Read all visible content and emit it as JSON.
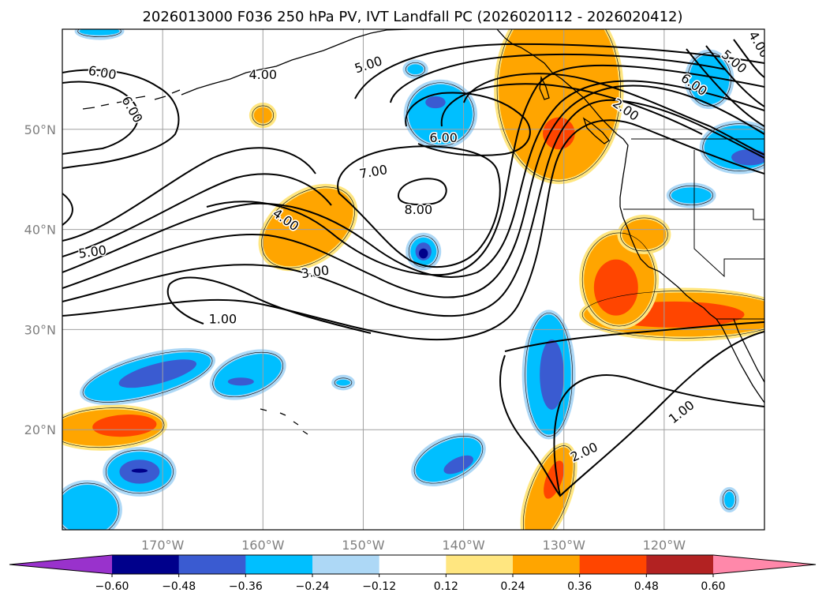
{
  "title": "2026013000 F036 250 hPa PV, IVT Landfall PC (2026020112 - 2026020412)",
  "map": {
    "projection": "equirectangular",
    "extent": {
      "lon_min": -180,
      "lon_max": -110,
      "lat_min": 10,
      "lat_max": 60
    },
    "gridlines": true,
    "lon_ticks": [
      {
        "value": -170,
        "label": "170°W"
      },
      {
        "value": -160,
        "label": "160°W"
      },
      {
        "value": -150,
        "label": "150°W"
      },
      {
        "value": -140,
        "label": "140°W"
      },
      {
        "value": -130,
        "label": "130°W"
      },
      {
        "value": -120,
        "label": "120°W"
      }
    ],
    "lat_ticks": [
      {
        "value": 50,
        "label": "50°N"
      },
      {
        "value": 40,
        "label": "40°N"
      },
      {
        "value": 30,
        "label": "30°N"
      },
      {
        "value": 20,
        "label": "20°N"
      }
    ]
  },
  "colorbar": {
    "extend": "both",
    "colors": [
      "#9932cc",
      "#00008b",
      "#3a5bd1",
      "#00bfff",
      "#add8f6",
      "#ffffff",
      "#ffe680",
      "#ffa500",
      "#ff4500",
      "#b22222",
      "#ff88aa"
    ],
    "tick_labels": [
      "−0.60",
      "−0.48",
      "−0.36",
      "−0.24",
      "−0.12",
      "0.12",
      "0.24",
      "0.36",
      "0.48",
      "0.60"
    ]
  },
  "contour_labels": [
    {
      "text": "6.00",
      "lon": -176,
      "lat": 55.7,
      "rot": 10
    },
    {
      "text": "6.00",
      "lon": -173,
      "lat": 52,
      "rot": 60
    },
    {
      "text": "4.00",
      "lon": -160,
      "lat": 55.5,
      "rot": 0
    },
    {
      "text": "5.00",
      "lon": -149.5,
      "lat": 56.5,
      "rot": -18
    },
    {
      "text": "7.00",
      "lon": -149,
      "lat": 45.8,
      "rot": -10
    },
    {
      "text": "6.00",
      "lon": -142,
      "lat": 49.2,
      "rot": 0
    },
    {
      "text": "8.00",
      "lon": -144.5,
      "lat": 42,
      "rot": 0
    },
    {
      "text": "4.00",
      "lon": -157.7,
      "lat": 41,
      "rot": 35
    },
    {
      "text": "3.00",
      "lon": -154.8,
      "lat": 35.8,
      "rot": -8
    },
    {
      "text": "5.00",
      "lon": -177,
      "lat": 37.8,
      "rot": -8
    },
    {
      "text": "1.00",
      "lon": -164,
      "lat": 31.1,
      "rot": 0
    },
    {
      "text": "2.00",
      "lon": -123.8,
      "lat": 52,
      "rot": 35
    },
    {
      "text": "6.00",
      "lon": -117,
      "lat": 54.5,
      "rot": 35
    },
    {
      "text": "5.00",
      "lon": -113,
      "lat": 56.8,
      "rot": 40
    },
    {
      "text": "4.00",
      "lon": -110.5,
      "lat": 58.5,
      "rot": 60
    },
    {
      "text": "2.00",
      "lon": -128,
      "lat": 17.8,
      "rot": -25
    },
    {
      "text": "1.00",
      "lon": -118.3,
      "lat": 21.8,
      "rot": -38
    }
  ],
  "pv_regions": [
    {
      "level": "0.24",
      "color": "#ffa500",
      "lon": -130.5,
      "lat": 54,
      "rx": 6,
      "ry": 9,
      "rot": 0
    },
    {
      "level": "0.36",
      "color": "#ff4500",
      "lon": -130.5,
      "lat": 49.6,
      "rx": 1.6,
      "ry": 1.6,
      "rot": 0
    },
    {
      "level": "0.24",
      "color": "#ffa500",
      "lon": -155.5,
      "lat": 40.2,
      "rx": 5,
      "ry": 3.2,
      "rot": -35
    },
    {
      "level": "0.24",
      "color": "#ffa500",
      "lon": -118,
      "lat": 31.5,
      "rx": 10,
      "ry": 2.2,
      "rot": 0
    },
    {
      "level": "0.36",
      "color": "#ff4500",
      "lon": -119,
      "lat": 31.5,
      "rx": 7,
      "ry": 1.3,
      "rot": 0
    },
    {
      "level": "0.24",
      "color": "#ffa500",
      "lon": -124.5,
      "lat": 35,
      "rx": 3.5,
      "ry": 4.5,
      "rot": 0
    },
    {
      "level": "0.36",
      "color": "#ff4500",
      "lon": -124.8,
      "lat": 34.2,
      "rx": 2.2,
      "ry": 2.8,
      "rot": 0
    },
    {
      "level": "0.24",
      "color": "#ffa500",
      "lon": -175.5,
      "lat": 20.2,
      "rx": 5.5,
      "ry": 1.8,
      "rot": -3
    },
    {
      "level": "0.36",
      "color": "#ff4500",
      "lon": -173.8,
      "lat": 20.4,
      "rx": 3.2,
      "ry": 1.1,
      "rot": -3
    },
    {
      "level": "0.24",
      "color": "#ffa500",
      "lon": -131.5,
      "lat": 13.5,
      "rx": 1.8,
      "ry": 5,
      "rot": 20
    },
    {
      "level": "0.36",
      "color": "#ff4500",
      "lon": -131,
      "lat": 15,
      "rx": 0.8,
      "ry": 2,
      "rot": 20
    },
    {
      "level": "0.24",
      "color": "#ffa500",
      "lon": -160,
      "lat": 51.4,
      "rx": 0.9,
      "ry": 0.8,
      "rot": 0
    },
    {
      "level": "0.24",
      "color": "#ffa500",
      "lon": -122,
      "lat": 39.5,
      "rx": 2.2,
      "ry": 1.5,
      "rot": 0
    },
    {
      "level": "-0.24",
      "color": "#00bfff",
      "lon": -142.3,
      "lat": 51.5,
      "rx": 3.2,
      "ry": 3,
      "rot": 0
    },
    {
      "level": "-0.36",
      "color": "#3a5bd1",
      "lon": -142.8,
      "lat": 52.7,
      "rx": 1,
      "ry": 0.6,
      "rot": 0
    },
    {
      "level": "-0.24",
      "color": "#00bfff",
      "lon": -115.5,
      "lat": 55,
      "rx": 2,
      "ry": 2.5,
      "rot": 0
    },
    {
      "level": "-0.24",
      "color": "#00bfff",
      "lon": -112.5,
      "lat": 48.2,
      "rx": 3.5,
      "ry": 2.2,
      "rot": 0
    },
    {
      "level": "-0.36",
      "color": "#3a5bd1",
      "lon": -111.5,
      "lat": 47.2,
      "rx": 1.8,
      "ry": 0.8,
      "rot": 0
    },
    {
      "level": "-0.24",
      "color": "#00bfff",
      "lon": -117.3,
      "lat": 43.4,
      "rx": 2,
      "ry": 0.8,
      "rot": 0
    },
    {
      "level": "-0.24",
      "color": "#00bfff",
      "lon": -144,
      "lat": 37.8,
      "rx": 1.3,
      "ry": 1.4,
      "rot": 0
    },
    {
      "level": "-0.36",
      "color": "#3a5bd1",
      "lon": -144,
      "lat": 37.8,
      "rx": 0.8,
      "ry": 0.9,
      "rot": 0
    },
    {
      "level": "-0.48",
      "color": "#00008b",
      "lon": -144,
      "lat": 37.6,
      "rx": 0.45,
      "ry": 0.5,
      "rot": 0
    },
    {
      "level": "-0.24",
      "color": "#00bfff",
      "lon": -131.5,
      "lat": 25.5,
      "rx": 2.2,
      "ry": 6,
      "rot": 0
    },
    {
      "level": "-0.36",
      "color": "#3a5bd1",
      "lon": -131.2,
      "lat": 25.5,
      "rx": 1.2,
      "ry": 3.5,
      "rot": 0
    },
    {
      "level": "-0.24",
      "color": "#00bfff",
      "lon": -171.5,
      "lat": 25.3,
      "rx": 6.5,
      "ry": 1.8,
      "rot": -15
    },
    {
      "level": "-0.36",
      "color": "#3a5bd1",
      "lon": -170.5,
      "lat": 25.6,
      "rx": 4,
      "ry": 1,
      "rot": -15
    },
    {
      "level": "-0.24",
      "color": "#00bfff",
      "lon": -161.5,
      "lat": 25.5,
      "rx": 3.5,
      "ry": 1.8,
      "rot": -20
    },
    {
      "level": "-0.36",
      "color": "#3a5bd1",
      "lon": -162.2,
      "lat": 24.8,
      "rx": 1.3,
      "ry": 0.4,
      "rot": 0
    },
    {
      "level": "-0.24",
      "color": "#00bfff",
      "lon": -172.3,
      "lat": 15.8,
      "rx": 3.2,
      "ry": 2,
      "rot": 0
    },
    {
      "level": "-0.36",
      "color": "#3a5bd1",
      "lon": -172.3,
      "lat": 15.8,
      "rx": 2,
      "ry": 1.2,
      "rot": 0
    },
    {
      "level": "-0.48",
      "color": "#00008b",
      "lon": -172.3,
      "lat": 15.9,
      "rx": 0.8,
      "ry": 0.2,
      "rot": 0
    },
    {
      "level": "-0.24",
      "color": "#00bfff",
      "lon": -141.5,
      "lat": 17,
      "rx": 3.5,
      "ry": 1.8,
      "rot": -25
    },
    {
      "level": "-0.36",
      "color": "#3a5bd1",
      "lon": -140.5,
      "lat": 16.5,
      "rx": 1.6,
      "ry": 0.7,
      "rot": -25
    },
    {
      "level": "-0.24",
      "color": "#00bfff",
      "lon": -177.5,
      "lat": 12,
      "rx": 3,
      "ry": 2.5,
      "rot": 0
    },
    {
      "level": "-0.24",
      "color": "#00bfff",
      "lon": -176.3,
      "lat": 59.8,
      "rx": 2,
      "ry": 0.4,
      "rot": 0
    },
    {
      "level": "-0.24",
      "color": "#00bfff",
      "lon": -144.8,
      "lat": 56,
      "rx": 0.8,
      "ry": 0.5,
      "rot": 0
    },
    {
      "level": "-0.24",
      "color": "#00bfff",
      "lon": -152,
      "lat": 24.7,
      "rx": 0.7,
      "ry": 0.3,
      "rot": 0
    },
    {
      "level": "-0.24",
      "color": "#00bfff",
      "lon": -113.5,
      "lat": 13,
      "rx": 0.5,
      "ry": 0.8,
      "rot": 0
    }
  ]
}
